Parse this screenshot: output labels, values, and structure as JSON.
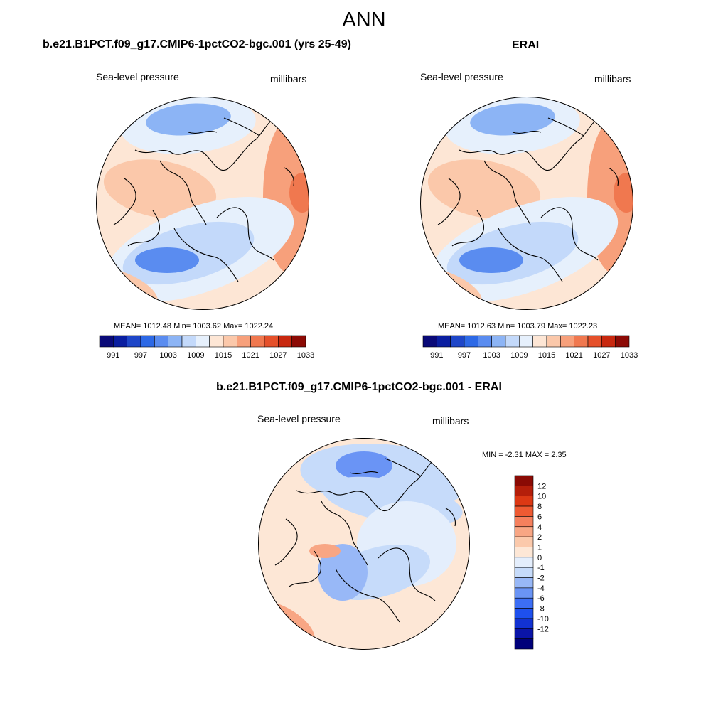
{
  "title": "ANN",
  "colors": {
    "slp_palette": [
      "#0a0a78",
      "#0a1ea0",
      "#1e46c8",
      "#2d69e6",
      "#5a8cf0",
      "#8cb4f5",
      "#c3d9fa",
      "#e6f0fc",
      "#fde6d5",
      "#fbc8aa",
      "#f7a07b",
      "#f0784f",
      "#e5502a",
      "#c8280f",
      "#8c0a05"
    ],
    "diff_palette": [
      "#00007a",
      "#0a14a8",
      "#1232d2",
      "#1e50ee",
      "#3c6ef5",
      "#6a94f5",
      "#98b8f7",
      "#c6dbfa",
      "#e4eefc",
      "#fde7d6",
      "#fbc9ab",
      "#f8a684",
      "#f5805d",
      "#ee5a32",
      "#dc3814",
      "#b41e0a",
      "#8a0a04"
    ],
    "outline": "#000000"
  },
  "panels": [
    {
      "title": "b.e21.B1PCT.f09_g17.CMIP6-1pctCO2-bgc.001 (yrs 25-49)",
      "variable": "Sea-level pressure",
      "units": "millibars",
      "stats": "MEAN= 1012.48  Min= 1003.62  Max= 1022.24",
      "colorbar_labels": [
        "991",
        "997",
        "1003",
        "1009",
        "1015",
        "1021",
        "1027",
        "1033"
      ]
    },
    {
      "title": "ERAI",
      "variable": "Sea-level pressure",
      "units": "millibars",
      "stats": "MEAN= 1012.63  Min= 1003.79  Max= 1022.23",
      "colorbar_labels": [
        "991",
        "997",
        "1003",
        "1009",
        "1015",
        "1021",
        "1027",
        "1033"
      ]
    },
    {
      "title": "b.e21.B1PCT.f09_g17.CMIP6-1pctCO2-bgc.001 - ERAI",
      "variable": "Sea-level pressure",
      "units": "millibars",
      "stats": "MIN =  -2.31 MAX =   2.35",
      "colorbar_labels": [
        "12",
        "10",
        "8",
        "6",
        "4",
        "2",
        "1",
        "0",
        "-1",
        "-2",
        "-4",
        "-6",
        "-8",
        "-10",
        "-12"
      ]
    }
  ]
}
